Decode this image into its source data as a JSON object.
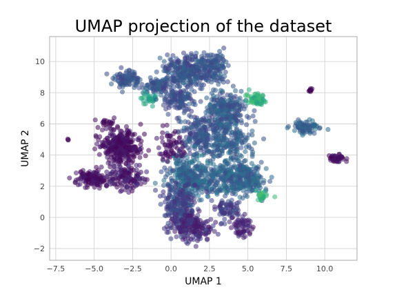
{
  "chart_data": {
    "type": "scatter",
    "title": "UMAP projection of the dataset",
    "xlabel": "UMAP 1",
    "ylabel": "UMAP 2",
    "xlim": [
      -7.9,
      12.1
    ],
    "ylim": [
      -2.75,
      11.6
    ],
    "xticks": [
      -7.5,
      -5.0,
      -2.5,
      0.0,
      2.5,
      5.0,
      7.5,
      10.0
    ],
    "xtick_labels": [
      "−7.5",
      "−5.0",
      "−2.5",
      "0.0",
      "2.5",
      "5.0",
      "7.5",
      "10.0"
    ],
    "yticks": [
      -2,
      0,
      2,
      4,
      6,
      8,
      10
    ],
    "ytick_labels": [
      "−2",
      "0",
      "2",
      "4",
      "6",
      "8",
      "10"
    ],
    "grid": true,
    "legend": "none",
    "colormap": "viridis",
    "point_alpha": 0.55,
    "colors": {
      "background": "#ffffff",
      "grid": "#cccccc",
      "axes_edge": "#aaaaaa",
      "text": "#000000",
      "tick_text": "#444444"
    },
    "clusters": [
      {
        "cx": 1.2,
        "cy": 9.4,
        "sx": 1.2,
        "sy": 0.7,
        "n": 320,
        "cmin": 0.18,
        "cmax": 0.34
      },
      {
        "cx": 2.8,
        "cy": 9.8,
        "sx": 0.6,
        "sy": 0.5,
        "n": 80,
        "cmin": 0.2,
        "cmax": 0.32
      },
      {
        "cx": -2.8,
        "cy": 8.8,
        "sx": 0.6,
        "sy": 0.4,
        "n": 90,
        "cmin": 0.2,
        "cmax": 0.32
      },
      {
        "cx": -1.0,
        "cy": 8.4,
        "sx": 0.6,
        "sy": 0.4,
        "n": 70,
        "cmin": 0.22,
        "cmax": 0.34
      },
      {
        "cx": -1.5,
        "cy": 7.6,
        "sx": 0.3,
        "sy": 0.25,
        "n": 30,
        "cmin": 0.5,
        "cmax": 0.65
      },
      {
        "cx": 0.5,
        "cy": 7.6,
        "sx": 0.8,
        "sy": 0.5,
        "n": 120,
        "cmin": 0.18,
        "cmax": 0.32
      },
      {
        "cx": 3.5,
        "cy": 6.8,
        "sx": 0.9,
        "sy": 0.9,
        "n": 260,
        "cmin": 0.2,
        "cmax": 0.36
      },
      {
        "cx": 5.5,
        "cy": 7.6,
        "sx": 0.35,
        "sy": 0.25,
        "n": 60,
        "cmin": 0.55,
        "cmax": 0.72
      },
      {
        "cx": 1.8,
        "cy": 5.2,
        "sx": 1.0,
        "sy": 1.0,
        "n": 200,
        "cmin": 0.18,
        "cmax": 0.34
      },
      {
        "cx": 3.8,
        "cy": 4.8,
        "sx": 1.0,
        "sy": 0.8,
        "n": 160,
        "cmin": 0.22,
        "cmax": 0.38
      },
      {
        "cx": 1.2,
        "cy": 2.6,
        "sx": 1.0,
        "sy": 0.9,
        "n": 320,
        "cmin": 0.24,
        "cmax": 0.42
      },
      {
        "cx": 3.8,
        "cy": 2.6,
        "sx": 1.2,
        "sy": 0.8,
        "n": 260,
        "cmin": 0.22,
        "cmax": 0.4
      },
      {
        "cx": 5.0,
        "cy": 2.4,
        "sx": 0.7,
        "sy": 0.6,
        "n": 120,
        "cmin": 0.24,
        "cmax": 0.4
      },
      {
        "cx": 5.9,
        "cy": 1.4,
        "sx": 0.3,
        "sy": 0.2,
        "n": 25,
        "cmin": 0.58,
        "cmax": 0.72
      },
      {
        "cx": 0.6,
        "cy": 0.8,
        "sx": 0.7,
        "sy": 0.9,
        "n": 220,
        "cmin": 0.12,
        "cmax": 0.28
      },
      {
        "cx": 1.3,
        "cy": -0.6,
        "sx": 0.9,
        "sy": 0.6,
        "n": 200,
        "cmin": 0.05,
        "cmax": 0.2
      },
      {
        "cx": 3.6,
        "cy": 0.4,
        "sx": 0.6,
        "sy": 0.5,
        "n": 70,
        "cmin": 0.1,
        "cmax": 0.24
      },
      {
        "cx": 4.6,
        "cy": -0.6,
        "sx": 0.4,
        "sy": 0.5,
        "n": 60,
        "cmin": 0.04,
        "cmax": 0.16
      },
      {
        "cx": -3.3,
        "cy": 4.5,
        "sx": 0.9,
        "sy": 0.7,
        "n": 300,
        "cmin": 0.0,
        "cmax": 0.08
      },
      {
        "cx": -3.0,
        "cy": 2.6,
        "sx": 0.8,
        "sy": 0.6,
        "n": 140,
        "cmin": 0.0,
        "cmax": 0.14
      },
      {
        "cx": -5.2,
        "cy": 2.5,
        "sx": 0.6,
        "sy": 0.35,
        "n": 130,
        "cmin": 0.0,
        "cmax": 0.1
      },
      {
        "cx": -4.2,
        "cy": 6.0,
        "sx": 0.5,
        "sy": 0.2,
        "n": 20,
        "cmin": 0.0,
        "cmax": 0.06
      },
      {
        "cx": 8.8,
        "cy": 5.8,
        "sx": 0.6,
        "sy": 0.3,
        "n": 80,
        "cmin": 0.25,
        "cmax": 0.38
      },
      {
        "cx": 10.8,
        "cy": 3.8,
        "sx": 0.3,
        "sy": 0.2,
        "n": 50,
        "cmin": 0.0,
        "cmax": 0.08
      },
      {
        "cx": 9.1,
        "cy": 8.2,
        "sx": 0.1,
        "sy": 0.1,
        "n": 10,
        "cmin": 0.0,
        "cmax": 0.04
      },
      {
        "cx": 0.0,
        "cy": 4.6,
        "sx": 0.5,
        "sy": 0.6,
        "n": 60,
        "cmin": 0.0,
        "cmax": 0.08
      },
      {
        "cx": -6.7,
        "cy": 5.0,
        "sx": 0.03,
        "sy": 0.03,
        "n": 3,
        "cmin": 0.0,
        "cmax": 0.02
      }
    ]
  }
}
